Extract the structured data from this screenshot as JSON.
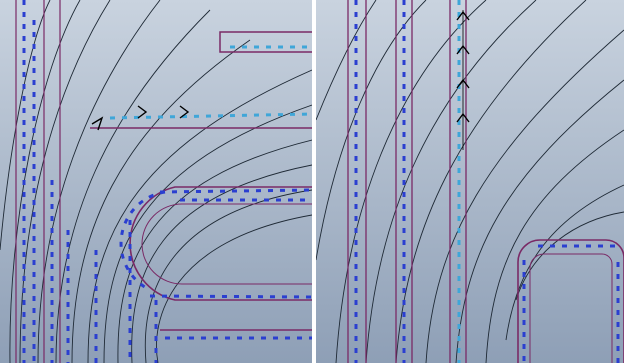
{
  "viewports": [
    {
      "id": "left",
      "label": ""
    },
    {
      "id": "right",
      "label": ""
    }
  ],
  "colors": {
    "background_top": "#c9d3df",
    "background_bottom": "#8e9fb6",
    "contour": "#1f2a36",
    "boundary": "#7a2a66",
    "flow_vectors": "#2b3fd0",
    "flow_vectors_light": "#3fa6d8",
    "annotation_arrow": "#000000"
  },
  "icons": [
    "flow-direction-arrow"
  ]
}
